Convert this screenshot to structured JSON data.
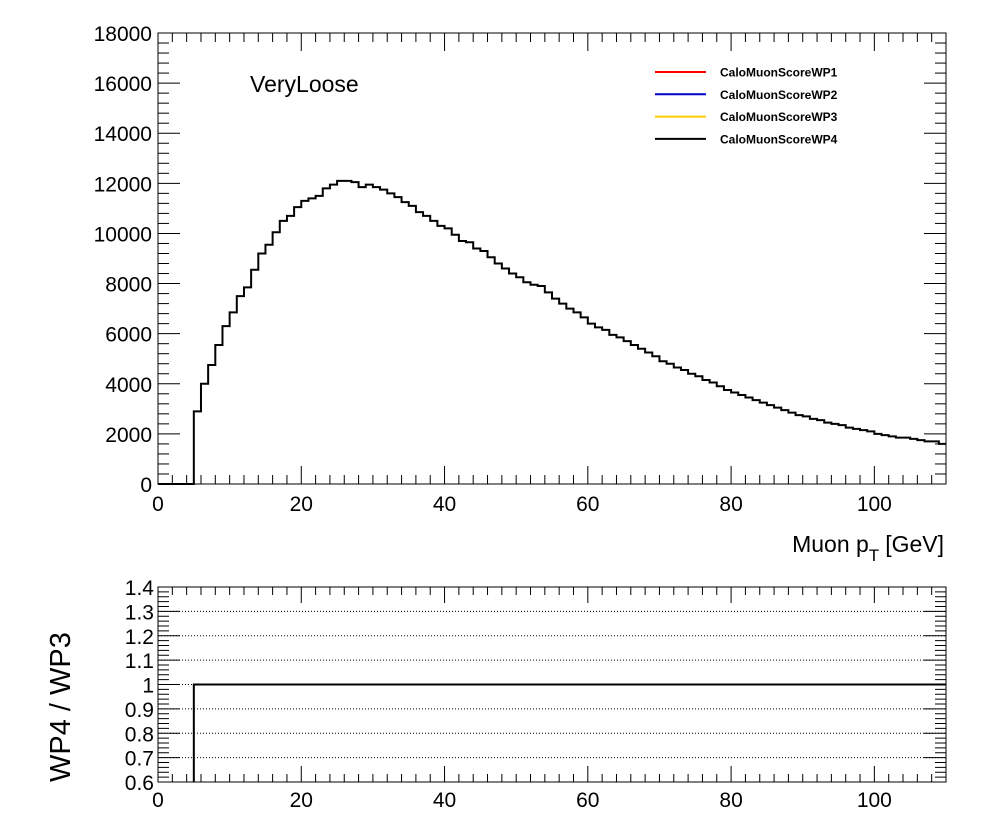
{
  "chart_data": [
    {
      "type": "line",
      "annotation": "VeryLoose",
      "xlabel": "Muon p",
      "xlabel_subscript": "T",
      "xlabel_unit": "[GeV]",
      "xlim": [
        0,
        110
      ],
      "ylim": [
        0,
        18000
      ],
      "x_ticks": [
        0,
        20,
        40,
        60,
        80,
        100
      ],
      "y_ticks": [
        0,
        2000,
        4000,
        6000,
        8000,
        10000,
        12000,
        14000,
        16000,
        18000
      ],
      "bin_width": 1,
      "bin_start": 0,
      "legend_position": "top-right",
      "series": [
        {
          "name": "CaloMuonScoreWP1",
          "color": "#ff0000"
        },
        {
          "name": "CaloMuonScoreWP2",
          "color": "#0000cc"
        },
        {
          "name": "CaloMuonScoreWP3",
          "color": "#ffcc00"
        },
        {
          "name": "CaloMuonScoreWP4",
          "color": "#000000"
        }
      ],
      "values": [
        0,
        0,
        0,
        0,
        0,
        2900,
        4000,
        4750,
        5550,
        6300,
        6850,
        7500,
        7850,
        8550,
        9200,
        9550,
        10050,
        10500,
        10700,
        11050,
        11300,
        11400,
        11500,
        11800,
        11950,
        12100,
        12100,
        12050,
        11850,
        11950,
        11850,
        11750,
        11600,
        11450,
        11250,
        11100,
        10850,
        10700,
        10500,
        10300,
        10200,
        9950,
        9700,
        9650,
        9400,
        9300,
        9050,
        8800,
        8600,
        8400,
        8250,
        8050,
        7950,
        7900,
        7650,
        7400,
        7200,
        7000,
        6850,
        6650,
        6400,
        6250,
        6150,
        5950,
        5850,
        5700,
        5550,
        5400,
        5250,
        5100,
        4900,
        4800,
        4650,
        4550,
        4400,
        4300,
        4150,
        4050,
        3900,
        3750,
        3650,
        3550,
        3450,
        3350,
        3250,
        3150,
        3050,
        2950,
        2850,
        2750,
        2700,
        2600,
        2550,
        2450,
        2400,
        2350,
        2250,
        2200,
        2150,
        2100,
        2000,
        1950,
        1900,
        1850,
        1850,
        1800,
        1750,
        1700,
        1700,
        1600
      ]
    },
    {
      "type": "line",
      "ylabel": "WP4 / WP3",
      "xlim": [
        0,
        110
      ],
      "ylim": [
        0.6,
        1.4
      ],
      "x_ticks": [
        0,
        20,
        40,
        60,
        80,
        100
      ],
      "y_ticks": [
        0.6,
        0.7,
        0.8,
        0.9,
        1,
        1.1,
        1.2,
        1.3,
        1.4
      ],
      "grid": "horizontal-dotted",
      "bin_width": 1,
      "bin_start": 0,
      "ratio_start_x": 5,
      "ratio_value": 1
    }
  ]
}
